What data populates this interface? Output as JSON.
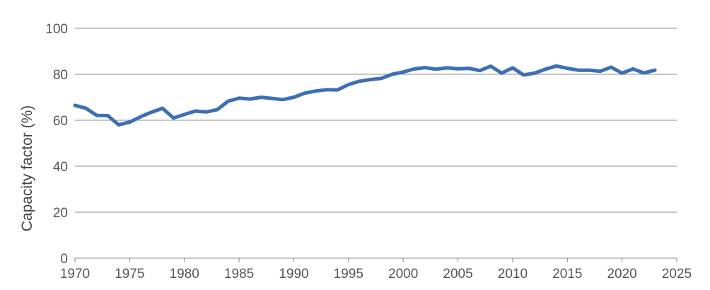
{
  "chart_data": {
    "type": "line",
    "title": "",
    "xlabel": "",
    "ylabel": "Capacity factor (%)",
    "xlim": [
      1970,
      2025
    ],
    "ylim": [
      0,
      100
    ],
    "xticks": [
      1970,
      1975,
      1980,
      1985,
      1990,
      1995,
      2000,
      2005,
      2010,
      2015,
      2020,
      2025
    ],
    "yticks": [
      0,
      20,
      40,
      60,
      80,
      100
    ],
    "grid": "horizontal",
    "legend": "none",
    "color": "#3d6fb4",
    "series": [
      {
        "x": [
          1970,
          1971,
          1972,
          1973,
          1974,
          1975,
          1976,
          1977,
          1978,
          1979,
          1980,
          1981,
          1982,
          1983,
          1984,
          1985,
          1986,
          1987,
          1988,
          1989,
          1990,
          1991,
          1992,
          1993,
          1994,
          1995,
          1996,
          1997,
          1998,
          1999,
          2000,
          2001,
          2002,
          2003,
          2004,
          2005,
          2006,
          2007,
          2008,
          2009,
          2010,
          2011,
          2012,
          2013,
          2014,
          2015,
          2016,
          2017,
          2018,
          2019,
          2020,
          2021,
          2022,
          2023
        ],
        "values": [
          66.5,
          65.2,
          62.1,
          62,
          58,
          59.2,
          61.5,
          63.5,
          65.2,
          61,
          62.5,
          64,
          63.6,
          64.6,
          68.3,
          69.6,
          69.2,
          70,
          69.5,
          69,
          70,
          71.8,
          72.7,
          73.3,
          73.2,
          75.5,
          77,
          77.7,
          78.2,
          80,
          81,
          82.3,
          82.9,
          82.2,
          82.8,
          82.4,
          82.6,
          81.6,
          83.5,
          80.5,
          82.8,
          79.7,
          80.5,
          82.2,
          83.6,
          82.6,
          81.8,
          81.8,
          81.3,
          83.1,
          80.5,
          82.3,
          80.6,
          81.8
        ]
      }
    ]
  }
}
